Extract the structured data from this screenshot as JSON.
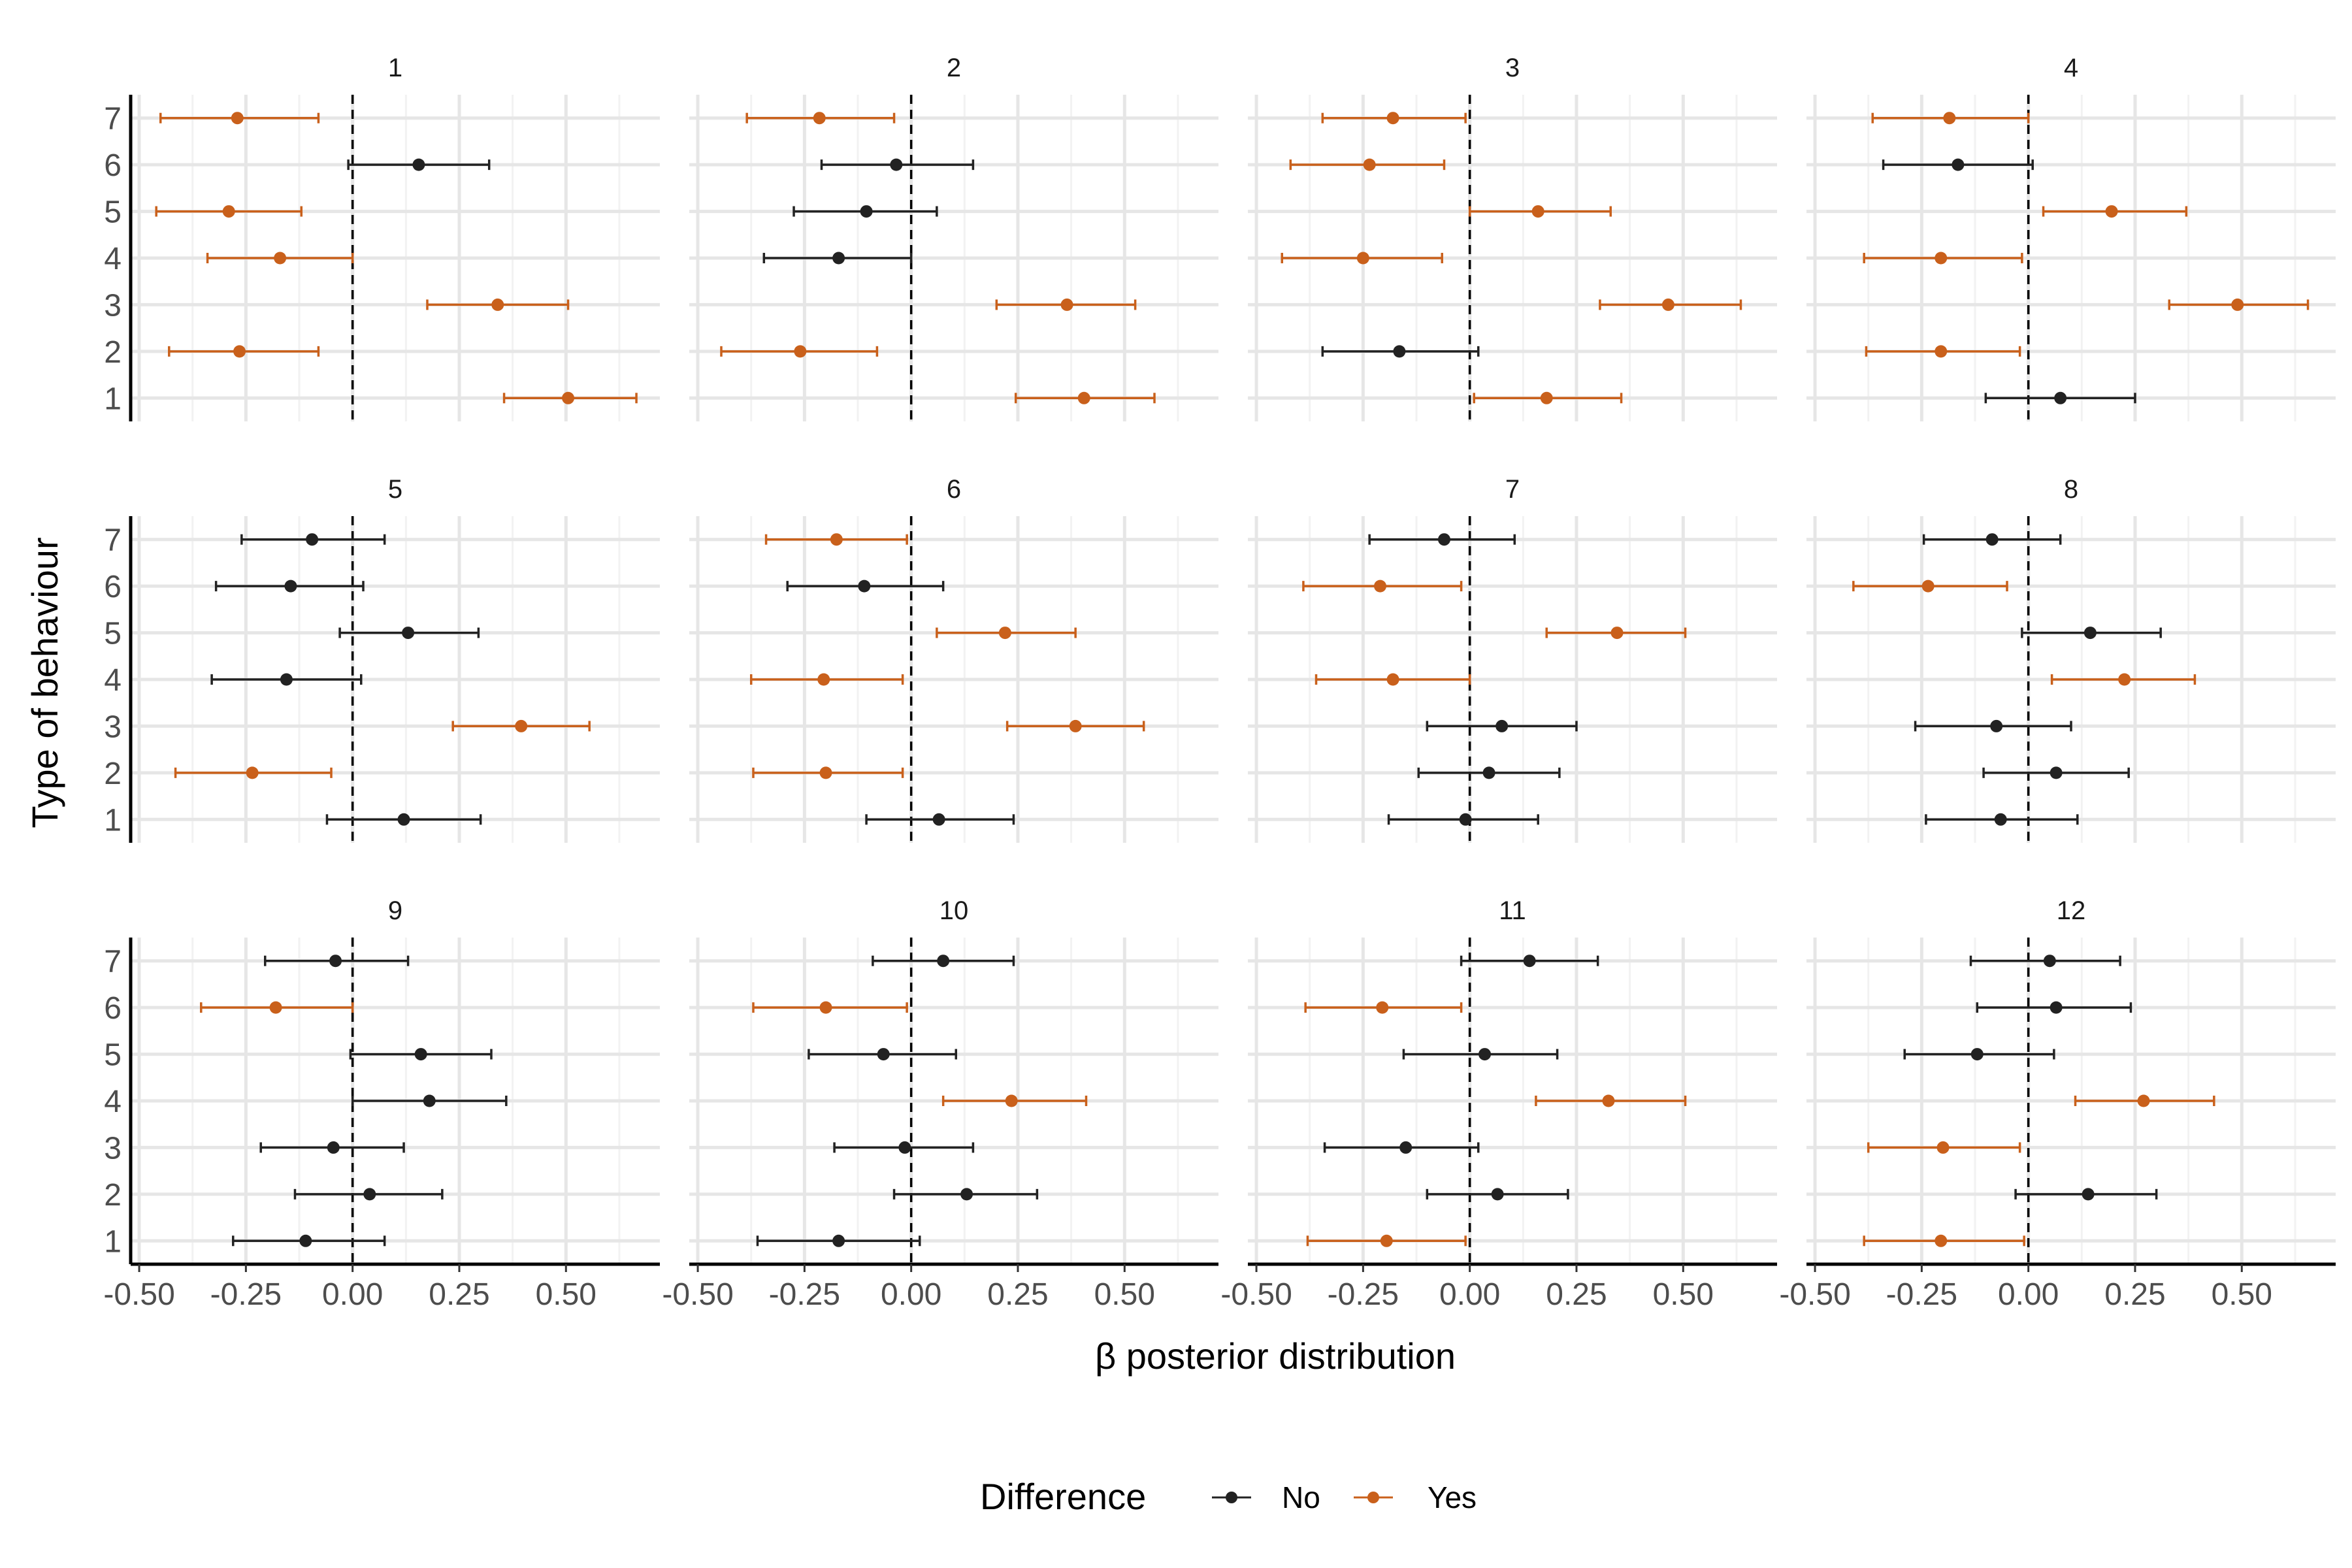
{
  "chart_data": {
    "type": "scatter",
    "xlabel": "β posterior distribution",
    "ylabel": "Type of behaviour",
    "xlim": [
      -0.52,
      0.72
    ],
    "ylim": [
      0.5,
      7.5
    ],
    "x_ticks": [
      "-0.50",
      "-0.25",
      "0.00",
      "0.25",
      "0.50"
    ],
    "x_tick_values": [
      -0.5,
      -0.25,
      0,
      0.25,
      0.5
    ],
    "y_ticks": [
      "1",
      "2",
      "3",
      "4",
      "5",
      "6",
      "7"
    ],
    "grid": true,
    "reference_line": 0,
    "legend": {
      "title": "Difference",
      "position": "bottom",
      "entries": [
        {
          "key": "No",
          "label": "No",
          "color": "#222222"
        },
        {
          "key": "Yes",
          "label": "Yes",
          "color": "#c9601b"
        }
      ]
    },
    "panels": [
      {
        "label": "1",
        "points": [
          {
            "y": 7,
            "x": -0.27,
            "lo": -0.45,
            "hi": -0.08,
            "diff": "Yes"
          },
          {
            "y": 6,
            "x": 0.155,
            "lo": -0.01,
            "hi": 0.32,
            "diff": "No"
          },
          {
            "y": 5,
            "x": -0.29,
            "lo": -0.46,
            "hi": -0.12,
            "diff": "Yes"
          },
          {
            "y": 4,
            "x": -0.17,
            "lo": -0.34,
            "hi": 0.0,
            "diff": "Yes"
          },
          {
            "y": 3,
            "x": 0.34,
            "lo": 0.175,
            "hi": 0.505,
            "diff": "Yes"
          },
          {
            "y": 2,
            "x": -0.265,
            "lo": -0.43,
            "hi": -0.08,
            "diff": "Yes"
          },
          {
            "y": 1,
            "x": 0.505,
            "lo": 0.355,
            "hi": 0.665,
            "diff": "Yes"
          }
        ]
      },
      {
        "label": "2",
        "points": [
          {
            "y": 7,
            "x": -0.215,
            "lo": -0.385,
            "hi": -0.04,
            "diff": "Yes"
          },
          {
            "y": 6,
            "x": -0.035,
            "lo": -0.21,
            "hi": 0.145,
            "diff": "No"
          },
          {
            "y": 5,
            "x": -0.105,
            "lo": -0.275,
            "hi": 0.06,
            "diff": "No"
          },
          {
            "y": 4,
            "x": -0.17,
            "lo": -0.345,
            "hi": 0.0,
            "diff": "No"
          },
          {
            "y": 3,
            "x": 0.365,
            "lo": 0.2,
            "hi": 0.525,
            "diff": "Yes"
          },
          {
            "y": 2,
            "x": -0.26,
            "lo": -0.445,
            "hi": -0.08,
            "diff": "Yes"
          },
          {
            "y": 1,
            "x": 0.405,
            "lo": 0.245,
            "hi": 0.57,
            "diff": "Yes"
          }
        ]
      },
      {
        "label": "3",
        "points": [
          {
            "y": 7,
            "x": -0.18,
            "lo": -0.345,
            "hi": -0.01,
            "diff": "Yes"
          },
          {
            "y": 6,
            "x": -0.235,
            "lo": -0.42,
            "hi": -0.06,
            "diff": "Yes"
          },
          {
            "y": 5,
            "x": 0.16,
            "lo": 0.0,
            "hi": 0.33,
            "diff": "Yes"
          },
          {
            "y": 4,
            "x": -0.25,
            "lo": -0.44,
            "hi": -0.065,
            "diff": "Yes"
          },
          {
            "y": 3,
            "x": 0.465,
            "lo": 0.305,
            "hi": 0.635,
            "diff": "Yes"
          },
          {
            "y": 2,
            "x": -0.165,
            "lo": -0.345,
            "hi": 0.02,
            "diff": "No"
          },
          {
            "y": 1,
            "x": 0.18,
            "lo": 0.01,
            "hi": 0.355,
            "diff": "Yes"
          }
        ]
      },
      {
        "label": "4",
        "points": [
          {
            "y": 7,
            "x": -0.185,
            "lo": -0.365,
            "hi": 0.0,
            "diff": "Yes"
          },
          {
            "y": 6,
            "x": -0.165,
            "lo": -0.34,
            "hi": 0.01,
            "diff": "No"
          },
          {
            "y": 5,
            "x": 0.195,
            "lo": 0.035,
            "hi": 0.37,
            "diff": "Yes"
          },
          {
            "y": 4,
            "x": -0.205,
            "lo": -0.385,
            "hi": -0.015,
            "diff": "Yes"
          },
          {
            "y": 3,
            "x": 0.49,
            "lo": 0.33,
            "hi": 0.655,
            "diff": "Yes"
          },
          {
            "y": 2,
            "x": -0.205,
            "lo": -0.38,
            "hi": -0.02,
            "diff": "Yes"
          },
          {
            "y": 1,
            "x": 0.075,
            "lo": -0.1,
            "hi": 0.25,
            "diff": "No"
          }
        ]
      },
      {
        "label": "5",
        "points": [
          {
            "y": 7,
            "x": -0.095,
            "lo": -0.26,
            "hi": 0.075,
            "diff": "No"
          },
          {
            "y": 6,
            "x": -0.145,
            "lo": -0.32,
            "hi": 0.025,
            "diff": "No"
          },
          {
            "y": 5,
            "x": 0.13,
            "lo": -0.03,
            "hi": 0.295,
            "diff": "No"
          },
          {
            "y": 4,
            "x": -0.155,
            "lo": -0.33,
            "hi": 0.02,
            "diff": "No"
          },
          {
            "y": 3,
            "x": 0.395,
            "lo": 0.235,
            "hi": 0.555,
            "diff": "Yes"
          },
          {
            "y": 2,
            "x": -0.235,
            "lo": -0.415,
            "hi": -0.05,
            "diff": "Yes"
          },
          {
            "y": 1,
            "x": 0.12,
            "lo": -0.06,
            "hi": 0.3,
            "diff": "No"
          }
        ]
      },
      {
        "label": "6",
        "points": [
          {
            "y": 7,
            "x": -0.175,
            "lo": -0.34,
            "hi": -0.01,
            "diff": "Yes"
          },
          {
            "y": 6,
            "x": -0.11,
            "lo": -0.29,
            "hi": 0.075,
            "diff": "No"
          },
          {
            "y": 5,
            "x": 0.22,
            "lo": 0.06,
            "hi": 0.385,
            "diff": "Yes"
          },
          {
            "y": 4,
            "x": -0.205,
            "lo": -0.375,
            "hi": -0.02,
            "diff": "Yes"
          },
          {
            "y": 3,
            "x": 0.385,
            "lo": 0.225,
            "hi": 0.545,
            "diff": "Yes"
          },
          {
            "y": 2,
            "x": -0.2,
            "lo": -0.37,
            "hi": -0.02,
            "diff": "Yes"
          },
          {
            "y": 1,
            "x": 0.065,
            "lo": -0.105,
            "hi": 0.24,
            "diff": "No"
          }
        ]
      },
      {
        "label": "7",
        "points": [
          {
            "y": 7,
            "x": -0.06,
            "lo": -0.235,
            "hi": 0.105,
            "diff": "No"
          },
          {
            "y": 6,
            "x": -0.21,
            "lo": -0.39,
            "hi": -0.02,
            "diff": "Yes"
          },
          {
            "y": 5,
            "x": 0.345,
            "lo": 0.18,
            "hi": 0.505,
            "diff": "Yes"
          },
          {
            "y": 4,
            "x": -0.18,
            "lo": -0.36,
            "hi": 0.0,
            "diff": "Yes"
          },
          {
            "y": 3,
            "x": 0.075,
            "lo": -0.1,
            "hi": 0.25,
            "diff": "No"
          },
          {
            "y": 2,
            "x": 0.045,
            "lo": -0.12,
            "hi": 0.21,
            "diff": "No"
          },
          {
            "y": 1,
            "x": -0.01,
            "lo": -0.19,
            "hi": 0.16,
            "diff": "No"
          }
        ]
      },
      {
        "label": "8",
        "points": [
          {
            "y": 7,
            "x": -0.085,
            "lo": -0.245,
            "hi": 0.075,
            "diff": "No"
          },
          {
            "y": 6,
            "x": -0.235,
            "lo": -0.41,
            "hi": -0.05,
            "diff": "Yes"
          },
          {
            "y": 5,
            "x": 0.145,
            "lo": -0.015,
            "hi": 0.31,
            "diff": "No"
          },
          {
            "y": 4,
            "x": 0.225,
            "lo": 0.055,
            "hi": 0.39,
            "diff": "Yes"
          },
          {
            "y": 3,
            "x": -0.075,
            "lo": -0.265,
            "hi": 0.1,
            "diff": "No"
          },
          {
            "y": 2,
            "x": 0.065,
            "lo": -0.105,
            "hi": 0.235,
            "diff": "No"
          },
          {
            "y": 1,
            "x": -0.065,
            "lo": -0.24,
            "hi": 0.115,
            "diff": "No"
          }
        ]
      },
      {
        "label": "9",
        "points": [
          {
            "y": 7,
            "x": -0.04,
            "lo": -0.205,
            "hi": 0.13,
            "diff": "No"
          },
          {
            "y": 6,
            "x": -0.18,
            "lo": -0.355,
            "hi": 0.0,
            "diff": "Yes"
          },
          {
            "y": 5,
            "x": 0.16,
            "lo": -0.005,
            "hi": 0.325,
            "diff": "No"
          },
          {
            "y": 4,
            "x": 0.18,
            "lo": 0.0,
            "hi": 0.36,
            "diff": "No"
          },
          {
            "y": 3,
            "x": -0.045,
            "lo": -0.215,
            "hi": 0.12,
            "diff": "No"
          },
          {
            "y": 2,
            "x": 0.04,
            "lo": -0.135,
            "hi": 0.21,
            "diff": "No"
          },
          {
            "y": 1,
            "x": -0.11,
            "lo": -0.28,
            "hi": 0.075,
            "diff": "No"
          }
        ]
      },
      {
        "label": "10",
        "points": [
          {
            "y": 7,
            "x": 0.075,
            "lo": -0.09,
            "hi": 0.24,
            "diff": "No"
          },
          {
            "y": 6,
            "x": -0.2,
            "lo": -0.37,
            "hi": -0.01,
            "diff": "Yes"
          },
          {
            "y": 5,
            "x": -0.065,
            "lo": -0.24,
            "hi": 0.105,
            "diff": "No"
          },
          {
            "y": 4,
            "x": 0.235,
            "lo": 0.075,
            "hi": 0.41,
            "diff": "Yes"
          },
          {
            "y": 3,
            "x": -0.015,
            "lo": -0.18,
            "hi": 0.145,
            "diff": "No"
          },
          {
            "y": 2,
            "x": 0.13,
            "lo": -0.04,
            "hi": 0.295,
            "diff": "No"
          },
          {
            "y": 1,
            "x": -0.17,
            "lo": -0.36,
            "hi": 0.02,
            "diff": "No"
          }
        ]
      },
      {
        "label": "11",
        "points": [
          {
            "y": 7,
            "x": 0.14,
            "lo": -0.02,
            "hi": 0.3,
            "diff": "No"
          },
          {
            "y": 6,
            "x": -0.205,
            "lo": -0.385,
            "hi": -0.02,
            "diff": "Yes"
          },
          {
            "y": 5,
            "x": 0.035,
            "lo": -0.155,
            "hi": 0.205,
            "diff": "No"
          },
          {
            "y": 4,
            "x": 0.325,
            "lo": 0.155,
            "hi": 0.505,
            "diff": "Yes"
          },
          {
            "y": 3,
            "x": -0.15,
            "lo": -0.34,
            "hi": 0.02,
            "diff": "No"
          },
          {
            "y": 2,
            "x": 0.065,
            "lo": -0.1,
            "hi": 0.23,
            "diff": "No"
          },
          {
            "y": 1,
            "x": -0.195,
            "lo": -0.38,
            "hi": -0.01,
            "diff": "Yes"
          }
        ]
      },
      {
        "label": "12",
        "points": [
          {
            "y": 7,
            "x": 0.05,
            "lo": -0.135,
            "hi": 0.215,
            "diff": "No"
          },
          {
            "y": 6,
            "x": 0.065,
            "lo": -0.12,
            "hi": 0.24,
            "diff": "No"
          },
          {
            "y": 5,
            "x": -0.12,
            "lo": -0.29,
            "hi": 0.06,
            "diff": "No"
          },
          {
            "y": 4,
            "x": 0.27,
            "lo": 0.11,
            "hi": 0.435,
            "diff": "Yes"
          },
          {
            "y": 3,
            "x": -0.2,
            "lo": -0.375,
            "hi": -0.02,
            "diff": "Yes"
          },
          {
            "y": 2,
            "x": 0.14,
            "lo": -0.03,
            "hi": 0.3,
            "diff": "No"
          },
          {
            "y": 1,
            "x": -0.205,
            "lo": -0.385,
            "hi": -0.01,
            "diff": "Yes"
          }
        ]
      }
    ]
  }
}
